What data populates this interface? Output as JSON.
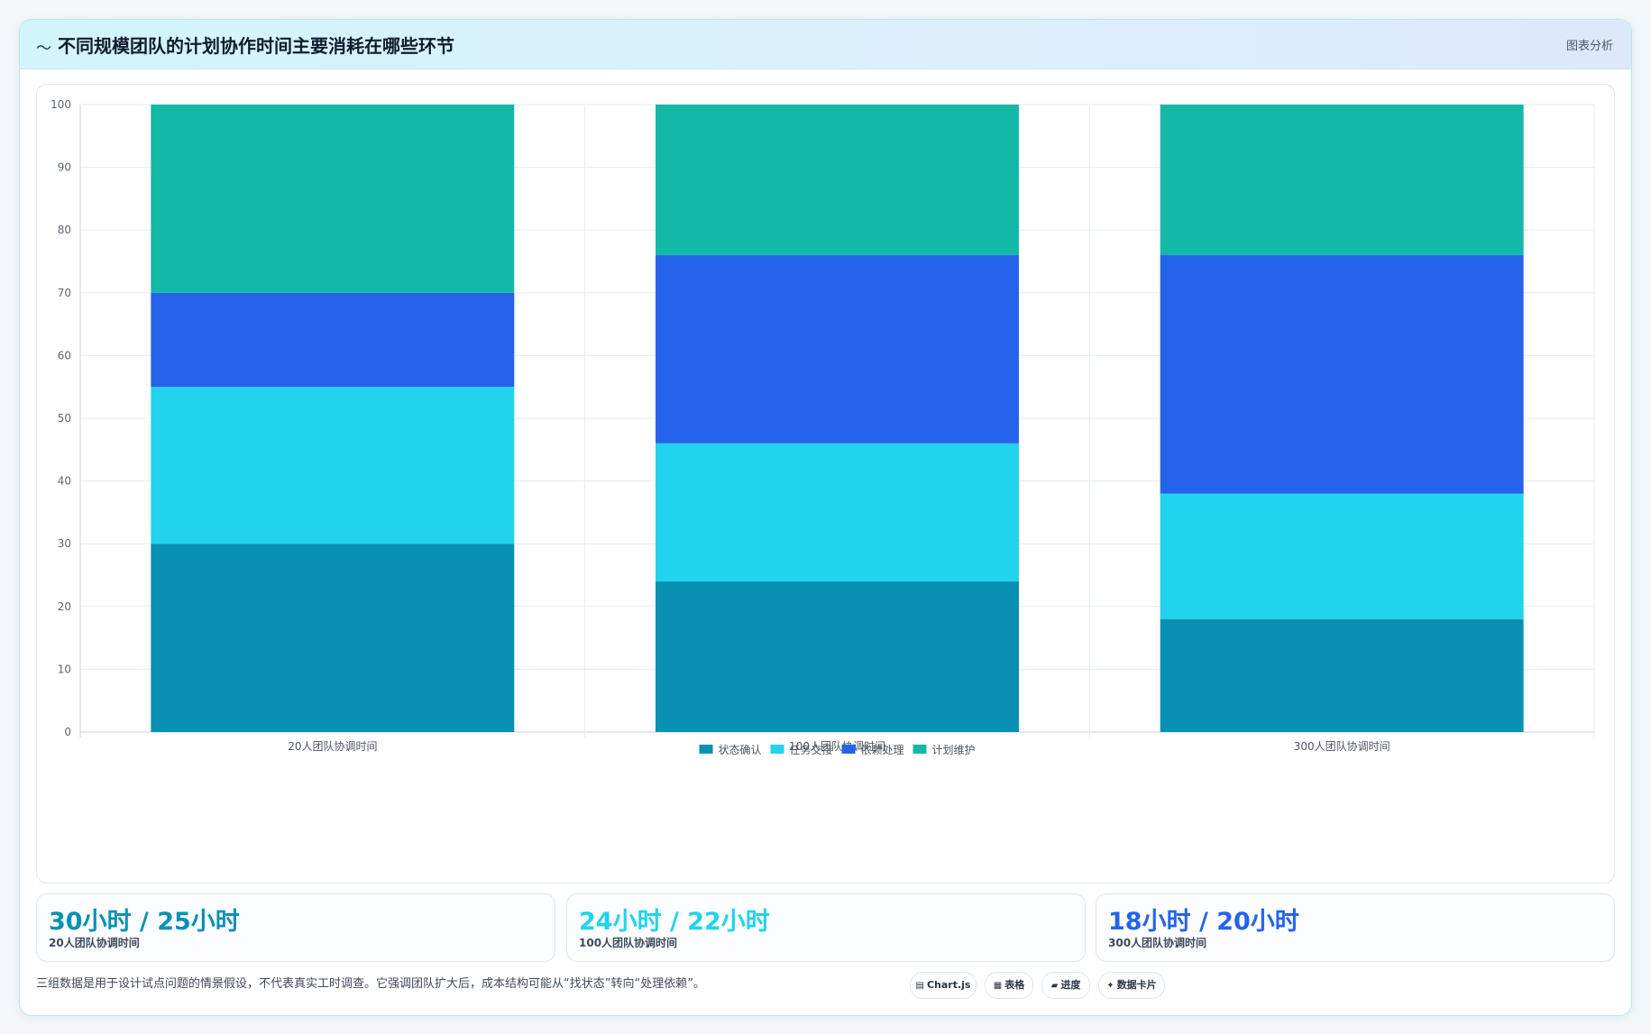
{
  "header": {
    "icon": "wave-icon",
    "title": "不同规模团队的计划协作时间主要消耗在哪些环节",
    "tag": "图表分析"
  },
  "chart_data": {
    "type": "bar",
    "stacked": true,
    "title": "",
    "xlabel": "",
    "ylabel": "",
    "ylim": [
      0,
      100
    ],
    "yticks": [
      0,
      10,
      20,
      30,
      40,
      50,
      60,
      70,
      80,
      90,
      100
    ],
    "grid": true,
    "legend": "bottom",
    "categories": [
      "20人团队协调时间",
      "100人团队协调时间",
      "300人团队协调时间"
    ],
    "series": [
      {
        "name": "状态确认",
        "color": "#0891b2",
        "values": [
          30,
          24,
          18
        ]
      },
      {
        "name": "任务交接",
        "color": "#22d3ee",
        "values": [
          25,
          22,
          20
        ]
      },
      {
        "name": "依赖处理",
        "color": "#2563eb",
        "values": [
          15,
          30,
          38
        ]
      },
      {
        "name": "计划维护",
        "color": "#14b8a6",
        "values": [
          30,
          24,
          24
        ]
      }
    ]
  },
  "stats": [
    {
      "value": "30小时 / 25小时",
      "label": "20人团队协调时间",
      "color": "#0891b2"
    },
    {
      "value": "24小时 / 22小时",
      "label": "100人团队协调时间",
      "color": "#22d3ee"
    },
    {
      "value": "18小时 / 20小时",
      "label": "300人团队协调时间",
      "color": "#2563eb"
    }
  ],
  "note": "三组数据是用于设计试点问题的情景假设，不代表真实工时调查。它强调团队扩大后，成本结构可能从“找状态”转向“处理依赖”。",
  "chips": [
    {
      "icon": "chart-icon",
      "glyph": "▤",
      "label": "Chart.js"
    },
    {
      "icon": "table-icon",
      "glyph": "▦",
      "label": "表格"
    },
    {
      "icon": "progress-icon",
      "glyph": "▰",
      "label": "进度"
    },
    {
      "icon": "sparkle-icon",
      "glyph": "✦",
      "label": "数据卡片"
    }
  ]
}
